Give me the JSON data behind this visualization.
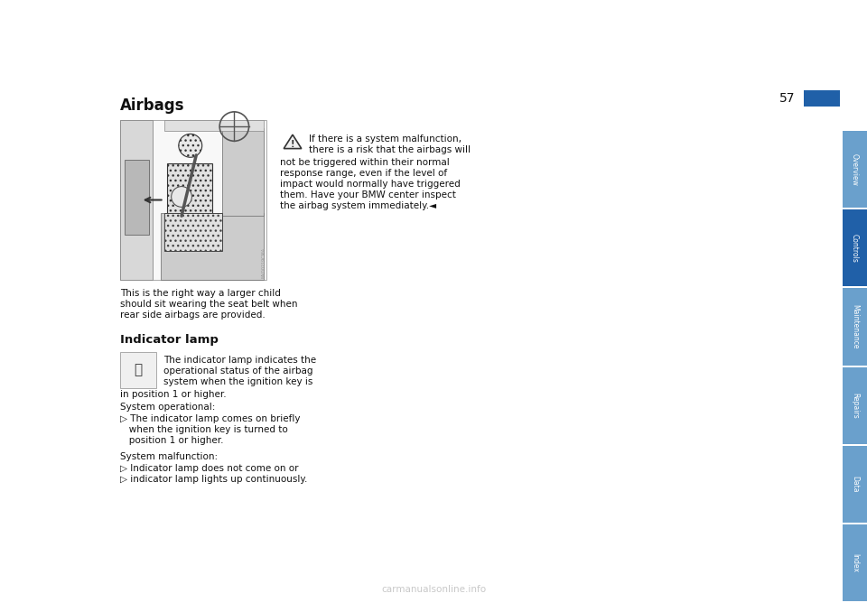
{
  "bg_color": "#ffffff",
  "page_title": "Airbags",
  "page_number": "57",
  "title_fontsize": 12,
  "body_fontsize": 7.5,
  "sidebar_tabs": [
    "Overview",
    "Controls",
    "Maintenance",
    "Repairs",
    "Data",
    "Index"
  ],
  "sidebar_active": "Controls",
  "sidebar_color_active": "#2060a8",
  "sidebar_color_inactive": "#6aa0cc",
  "sidebar_text_color": "#ffffff",
  "warning_text_lines": [
    "If there is a system malfunction,",
    "there is a risk that the airbags will",
    "not be triggered within their normal",
    "response range, even if the level of",
    "impact would normally have triggered",
    "them. Have your BMW center inspect",
    "the airbag system immediately.◄"
  ],
  "caption_text": "This is the right way a larger child\nshould sit wearing the seat belt when\nrear side airbags are provided.",
  "indicator_heading": "Indicator lamp",
  "indicator_text_line1": "The indicator lamp indicates the",
  "indicator_text_line2": "operational status of the airbag",
  "indicator_text_line3": "system when the ignition key is",
  "indicator_text_line4": "in position 1 or higher.",
  "system_op_label": "System operational:",
  "system_op_bullet": "▷ The indicator lamp comes on briefly",
  "system_op_bullet2": "   when the ignition key is turned to",
  "system_op_bullet3": "   position 1 or higher.",
  "system_mal_label": "System malfunction:",
  "system_mal_bullet1": "▷ Indicator lamp does not come on or",
  "system_mal_bullet2": "▷ indicator lamp lights up continuously.",
  "watermark": "carmanualsonline.info",
  "img_credit": "MV00219CMA"
}
